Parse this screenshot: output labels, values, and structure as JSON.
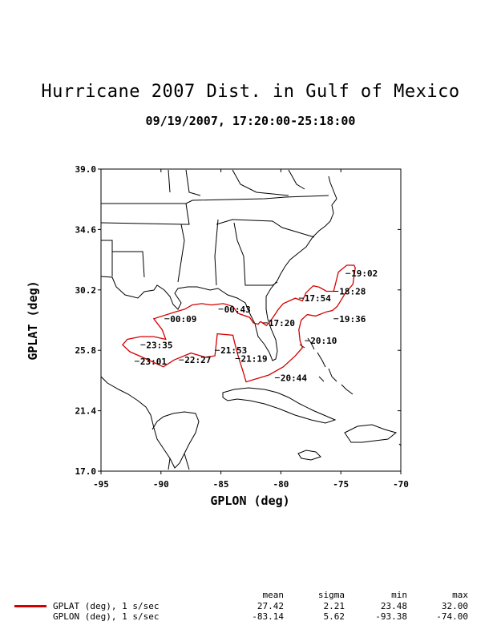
{
  "header": {
    "title": "Hurricane 2007 Dist. in Gulf of Mexico",
    "subtitle": "09/19/2007, 17:20:00-25:18:00"
  },
  "colors": {
    "track": "#d40000",
    "map": "#000000"
  },
  "chart_data": {
    "type": "line",
    "xlabel": "GPLON (deg)",
    "ylabel": "GPLAT (deg)",
    "xlim": [
      -95,
      -70
    ],
    "ylim": [
      17.0,
      39.0
    ],
    "xticks": [
      -95,
      -90,
      -85,
      -80,
      -75,
      -70
    ],
    "xtick_labels": [
      "-95",
      "-90",
      "-85",
      "-80",
      "-75",
      "-70"
    ],
    "yticks": [
      17.0,
      21.4,
      25.8,
      30.2,
      34.6,
      39.0
    ],
    "ytick_labels": [
      "17.0",
      "21.4",
      "25.8",
      "30.2",
      "34.6",
      "39.0"
    ],
    "series": [
      {
        "name": "GPLAT (deg), 1 s/sec",
        "points": [
          [
            -81.7,
            27.9
          ],
          [
            -81.2,
            27.6
          ],
          [
            -80.9,
            27.9
          ],
          [
            -80.5,
            28.4
          ],
          [
            -80.2,
            28.8
          ],
          [
            -79.8,
            29.2
          ],
          [
            -79.3,
            29.4
          ],
          [
            -78.8,
            29.6
          ],
          [
            -78.2,
            29.4
          ],
          [
            -77.9,
            30.0
          ],
          [
            -77.3,
            30.5
          ],
          [
            -76.8,
            30.4
          ],
          [
            -76.2,
            30.1
          ],
          [
            -75.6,
            30.1
          ],
          [
            -75.2,
            31.5
          ],
          [
            -74.5,
            32.0
          ],
          [
            -73.9,
            32.0
          ],
          [
            -73.8,
            31.8
          ],
          [
            -74.0,
            30.6
          ],
          [
            -74.6,
            30.0
          ],
          [
            -75.3,
            29.0
          ],
          [
            -75.7,
            28.7
          ],
          [
            -76.2,
            28.6
          ],
          [
            -77.1,
            28.3
          ],
          [
            -77.8,
            28.4
          ],
          [
            -78.3,
            28.0
          ],
          [
            -78.5,
            27.3
          ],
          [
            -78.4,
            26.5
          ],
          [
            -78.2,
            26.0
          ],
          [
            -78.8,
            25.4
          ],
          [
            -79.8,
            24.6
          ],
          [
            -81.0,
            24.0
          ],
          [
            -82.9,
            23.5
          ],
          [
            -83.1,
            24.1
          ],
          [
            -83.6,
            25.5
          ],
          [
            -83.9,
            26.5
          ],
          [
            -84.0,
            26.9
          ],
          [
            -85.3,
            27.0
          ],
          [
            -85.4,
            26.2
          ],
          [
            -85.5,
            25.4
          ],
          [
            -86.3,
            25.3
          ],
          [
            -87.5,
            25.6
          ],
          [
            -88.9,
            25.1
          ],
          [
            -89.8,
            24.6
          ],
          [
            -91.3,
            25.2
          ],
          [
            -92.6,
            25.7
          ],
          [
            -93.2,
            26.2
          ],
          [
            -92.8,
            26.6
          ],
          [
            -91.7,
            26.8
          ],
          [
            -90.6,
            26.8
          ],
          [
            -89.6,
            26.6
          ],
          [
            -89.9,
            27.3
          ],
          [
            -90.6,
            28.1
          ],
          [
            -88.8,
            28.6
          ],
          [
            -88.0,
            28.8
          ],
          [
            -87.4,
            29.1
          ],
          [
            -86.6,
            29.2
          ],
          [
            -85.8,
            29.1
          ],
          [
            -84.8,
            29.2
          ],
          [
            -84.0,
            29.0
          ],
          [
            -83.6,
            28.5
          ],
          [
            -82.6,
            28.2
          ],
          [
            -82.3,
            27.8
          ],
          [
            -81.9,
            27.7
          ],
          [
            -81.7,
            27.9
          ]
        ]
      }
    ],
    "annotations": [
      {
        "text": "19:02",
        "x": -74.2,
        "y": 31.4
      },
      {
        "text": "18:28",
        "x": -75.2,
        "y": 30.1
      },
      {
        "text": "17:54",
        "x": -78.1,
        "y": 29.6
      },
      {
        "text": "19:36",
        "x": -75.2,
        "y": 28.1
      },
      {
        "text": "17:20",
        "x": -81.1,
        "y": 27.8
      },
      {
        "text": "20:10",
        "x": -77.6,
        "y": 26.5
      },
      {
        "text": "20:44",
        "x": -80.1,
        "y": 23.8
      },
      {
        "text": "21:19",
        "x": -83.4,
        "y": 25.2
      },
      {
        "text": "21:53",
        "x": -85.1,
        "y": 25.8
      },
      {
        "text": "22:27",
        "x": -88.1,
        "y": 25.1
      },
      {
        "text": "23:01",
        "x": -91.8,
        "y": 25.0
      },
      {
        "text": "23:35",
        "x": -91.3,
        "y": 26.2
      },
      {
        "text": "00:09",
        "x": -89.3,
        "y": 28.1
      },
      {
        "text": "00:43",
        "x": -84.8,
        "y": 28.8
      }
    ]
  },
  "stats": {
    "headers": [
      "mean",
      "sigma",
      "min",
      "max"
    ],
    "rows": [
      {
        "label": "GPLAT (deg), 1 s/sec",
        "mean": "27.42",
        "sigma": "2.21",
        "min": "23.48",
        "max": "32.00"
      },
      {
        "label": "GPLON (deg), 1 s/sec",
        "mean": "-83.14",
        "sigma": "5.62",
        "min": "-93.38",
        "max": "-74.00"
      }
    ]
  }
}
